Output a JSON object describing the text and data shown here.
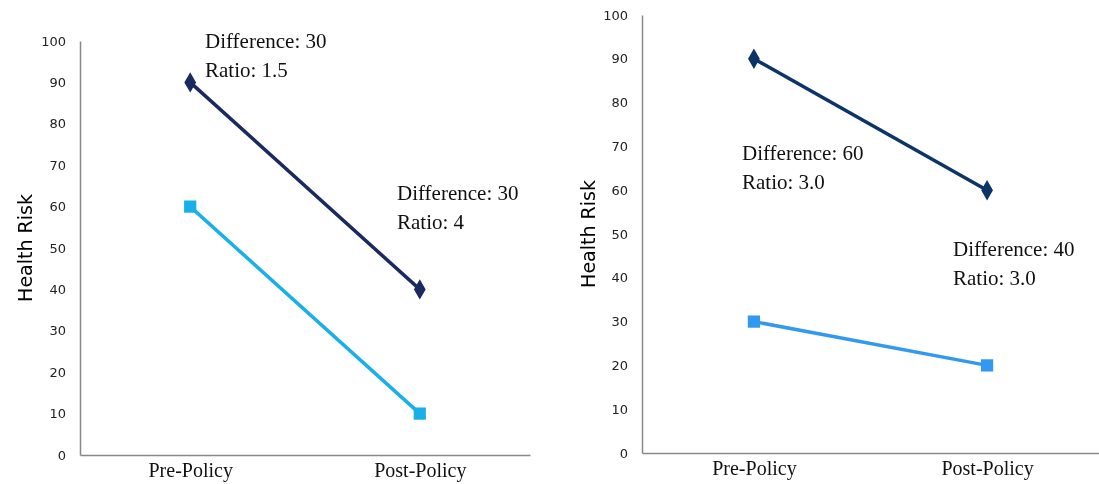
{
  "chart_data": [
    {
      "type": "line",
      "ylabel": "Health Risk",
      "categories": [
        "Pre-Policy",
        "Post-Policy"
      ],
      "ylim": [
        0,
        100
      ],
      "yticks": [
        0,
        10,
        20,
        30,
        40,
        50,
        60,
        70,
        80,
        90,
        100
      ],
      "series": [
        {
          "color": "#1a2a5e",
          "values": [
            90,
            40
          ],
          "marker": "diamond"
        },
        {
          "color": "#19b0ea",
          "values": [
            60,
            10
          ],
          "marker": "square"
        }
      ],
      "annotations": [
        "Difference: 30\nRatio: 1.5",
        "Difference: 30\nRatio: 4"
      ]
    },
    {
      "type": "line",
      "ylabel": "Health Risk",
      "categories": [
        "Pre-Policy",
        "Post-Policy"
      ],
      "ylim": [
        0,
        100
      ],
      "yticks": [
        0,
        10,
        20,
        30,
        40,
        50,
        60,
        70,
        80,
        90,
        100
      ],
      "series": [
        {
          "color": "#0d3466",
          "values": [
            90,
            60
          ],
          "marker": "diamond"
        },
        {
          "color": "#3399f0",
          "values": [
            30,
            20
          ],
          "marker": "square"
        }
      ],
      "annotations": [
        "Difference: 60\nRatio: 3.0",
        "Difference: 40\nRatio: 3.0"
      ]
    }
  ]
}
